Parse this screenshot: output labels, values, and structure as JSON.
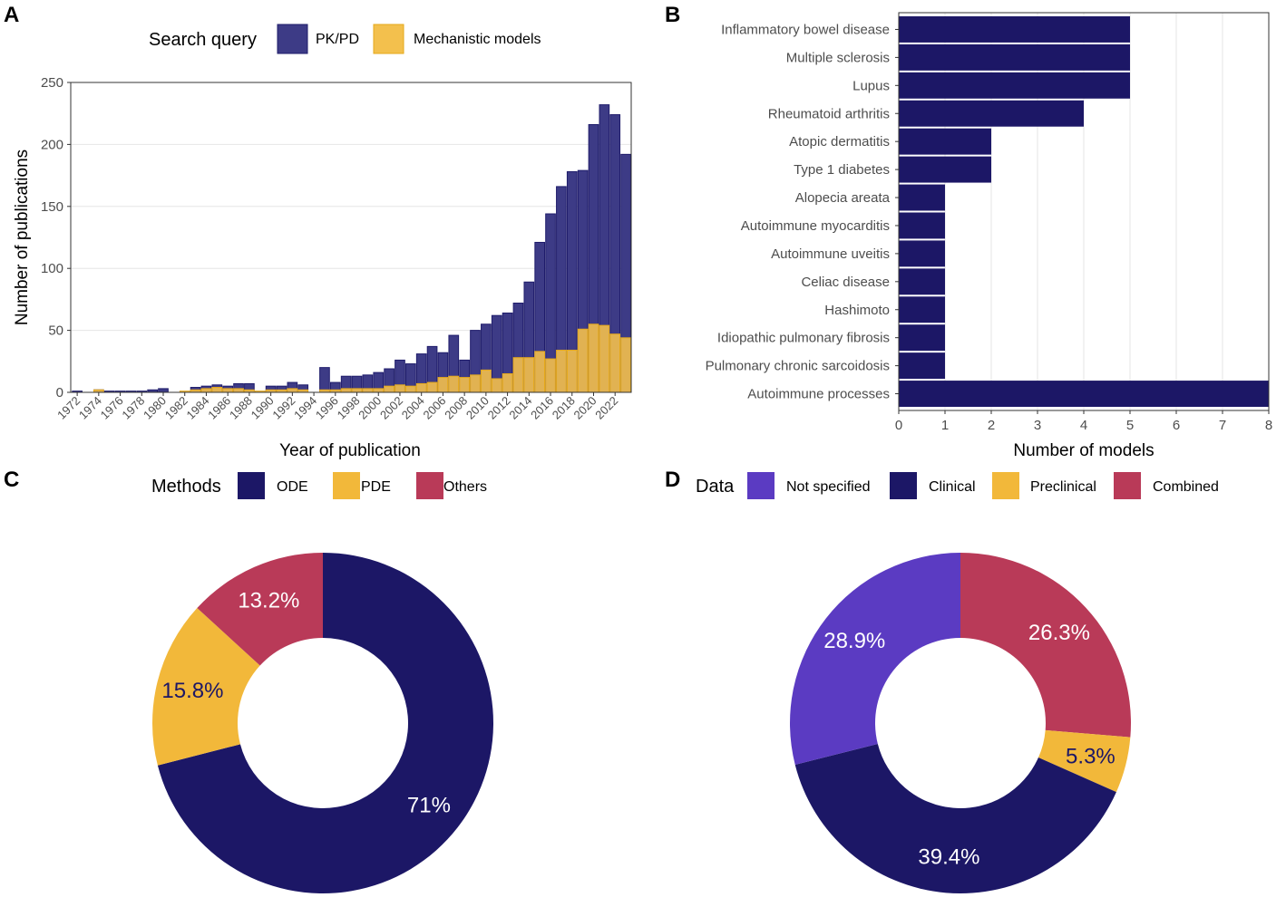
{
  "panels": {
    "a": "A",
    "b": "B",
    "c": "C",
    "d": "D"
  },
  "colors": {
    "pkpd_fill": "#3d3b86",
    "pkpd_edge": "#1f1c6b",
    "mech_fill": "#f3c04d",
    "mech_edge": "#e6a91a",
    "navy": "#1c1766",
    "gold": "#f2b83a",
    "crimson": "#b93a58",
    "purple": "#5b3bc2",
    "grid": "#e6e6e6"
  },
  "chart_data": [
    {
      "type": "bar",
      "panel": "A",
      "legend_title": "Search query",
      "xlabel": "Year of publication",
      "ylabel": "Number of publications",
      "ylim": [
        0,
        250
      ],
      "yticks": [
        0,
        50,
        100,
        150,
        200,
        250
      ],
      "xtick_labels": [
        "1972",
        "1974",
        "1976",
        "1978",
        "1980",
        "1982",
        "1984",
        "1986",
        "1988",
        "1990",
        "1992",
        "1994",
        "1996",
        "1998",
        "2000",
        "2002",
        "2004",
        "2006",
        "2008",
        "2010",
        "2012",
        "2014",
        "2016",
        "2018",
        "2020",
        "2022"
      ],
      "categories": [
        1972,
        1973,
        1974,
        1975,
        1976,
        1977,
        1978,
        1979,
        1980,
        1981,
        1982,
        1983,
        1984,
        1985,
        1986,
        1987,
        1988,
        1989,
        1990,
        1991,
        1992,
        1993,
        1994,
        1995,
        1996,
        1997,
        1998,
        1999,
        2000,
        2001,
        2002,
        2003,
        2004,
        2005,
        2006,
        2007,
        2008,
        2009,
        2010,
        2011,
        2012,
        2013,
        2014,
        2015,
        2016,
        2017,
        2018,
        2019,
        2020,
        2021,
        2022,
        2023
      ],
      "series": [
        {
          "name": "PK/PD",
          "values": [
            1,
            0,
            2,
            1,
            1,
            1,
            1,
            2,
            3,
            0,
            0,
            4,
            5,
            6,
            5,
            7,
            7,
            0,
            5,
            5,
            8,
            6,
            0,
            20,
            8,
            13,
            13,
            14,
            16,
            19,
            26,
            23,
            31,
            37,
            32,
            46,
            26,
            50,
            55,
            62,
            64,
            72,
            89,
            121,
            144,
            166,
            178,
            179,
            216,
            232,
            224,
            192
          ]
        },
        {
          "name": "Mechanistic models",
          "values": [
            0,
            0,
            2,
            0,
            0,
            0,
            0,
            0,
            0,
            0,
            1,
            2,
            3,
            4,
            3,
            3,
            2,
            1,
            2,
            2,
            3,
            2,
            0,
            2,
            2,
            3,
            3,
            3,
            3,
            5,
            6,
            5,
            7,
            8,
            12,
            13,
            12,
            14,
            18,
            11,
            15,
            28,
            28,
            33,
            27,
            34,
            34,
            51,
            55,
            54,
            47,
            44
          ]
        }
      ]
    },
    {
      "type": "bar",
      "orientation": "horizontal",
      "panel": "B",
      "xlabel": "Number of models",
      "xlim": [
        0,
        8
      ],
      "xticks": [
        0,
        1,
        2,
        3,
        4,
        5,
        6,
        7,
        8
      ],
      "categories": [
        "Inflammatory bowel disease",
        "Multiple sclerosis",
        "Lupus",
        "Rheumatoid arthritis",
        "Atopic dermatitis",
        "Type 1 diabetes",
        "Alopecia areata",
        "Autoimmune myocarditis",
        "Autoimmune uveitis",
        "Celiac disease",
        "Hashimoto",
        "Idiopathic pulmonary fibrosis",
        "Pulmonary chronic sarcoidosis",
        "Autoimmune processes"
      ],
      "values": [
        5,
        5,
        5,
        4,
        2,
        2,
        1,
        1,
        1,
        1,
        1,
        1,
        1,
        8
      ]
    },
    {
      "type": "pie",
      "panel": "C",
      "legend_title": "Methods",
      "slices": [
        {
          "label": "ODE",
          "value": 71.0,
          "text": "71%",
          "color": "#1c1766",
          "text_color": "#ffffff"
        },
        {
          "label": "PDE",
          "value": 15.8,
          "text": "15.8%",
          "color": "#f2b83a",
          "text_color": "#1c1766"
        },
        {
          "label": "Others",
          "value": 13.2,
          "text": "13.2%",
          "color": "#b93a58",
          "text_color": "#ffffff"
        }
      ]
    },
    {
      "type": "pie",
      "panel": "D",
      "legend_title": "Data",
      "legend_order": [
        "Not specified",
        "Clinical",
        "Preclinical",
        "Combined"
      ],
      "slices": [
        {
          "label": "Combined",
          "value": 26.3,
          "text": "26.3%",
          "color": "#b93a58",
          "text_color": "#ffffff"
        },
        {
          "label": "Preclinical",
          "value": 5.3,
          "text": "5.3%",
          "color": "#f2b83a",
          "text_color": "#1c1766"
        },
        {
          "label": "Clinical",
          "value": 39.4,
          "text": "39.4%",
          "color": "#1c1766",
          "text_color": "#ffffff"
        },
        {
          "label": "Not specified",
          "value": 28.9,
          "text": "28.9%",
          "color": "#5b3bc2",
          "text_color": "#ffffff"
        }
      ]
    }
  ]
}
